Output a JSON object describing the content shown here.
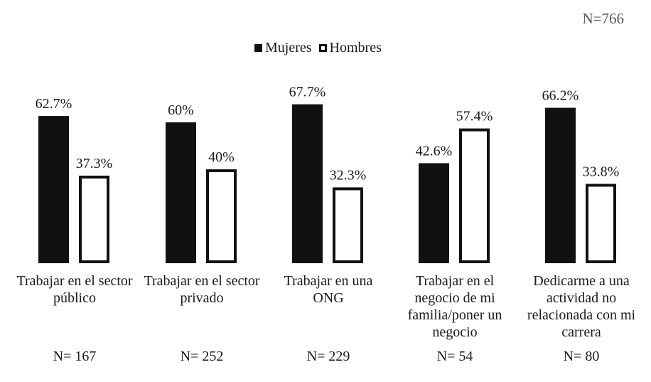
{
  "total_label": "N=766",
  "chart_data": {
    "type": "bar",
    "categories": [
      [
        "Trabajar en el sector",
        "público"
      ],
      [
        "Trabajar en el sector",
        "privado"
      ],
      [
        "Trabajar en una",
        "ONG"
      ],
      [
        "Trabajar en el",
        "negocio de mi",
        "familia/poner un",
        "negocio"
      ],
      [
        "Dedicarme a una",
        "actividad no",
        "relacionada con mi",
        "carrera"
      ]
    ],
    "series": [
      {
        "name": "Mujeres",
        "values": [
          62.7,
          60,
          67.7,
          42.6,
          66.2
        ],
        "labels": [
          "62.7%",
          "60%",
          "67.7%",
          "42.6%",
          "66.2%"
        ],
        "color": "#111111",
        "style": "filled"
      },
      {
        "name": "Hombres",
        "values": [
          37.3,
          40,
          32.3,
          57.4,
          33.8
        ],
        "labels": [
          "37.3%",
          "40%",
          "32.3%",
          "57.4%",
          "33.8%"
        ],
        "color": "#ffffff",
        "stroke": "#111111",
        "style": "outline"
      }
    ],
    "n_labels": [
      "N= 167",
      "N= 252",
      "N= 229",
      "N= 54",
      "N= 80"
    ],
    "legend_position": "top-center",
    "grid": false,
    "ylim": [
      0,
      100
    ]
  }
}
